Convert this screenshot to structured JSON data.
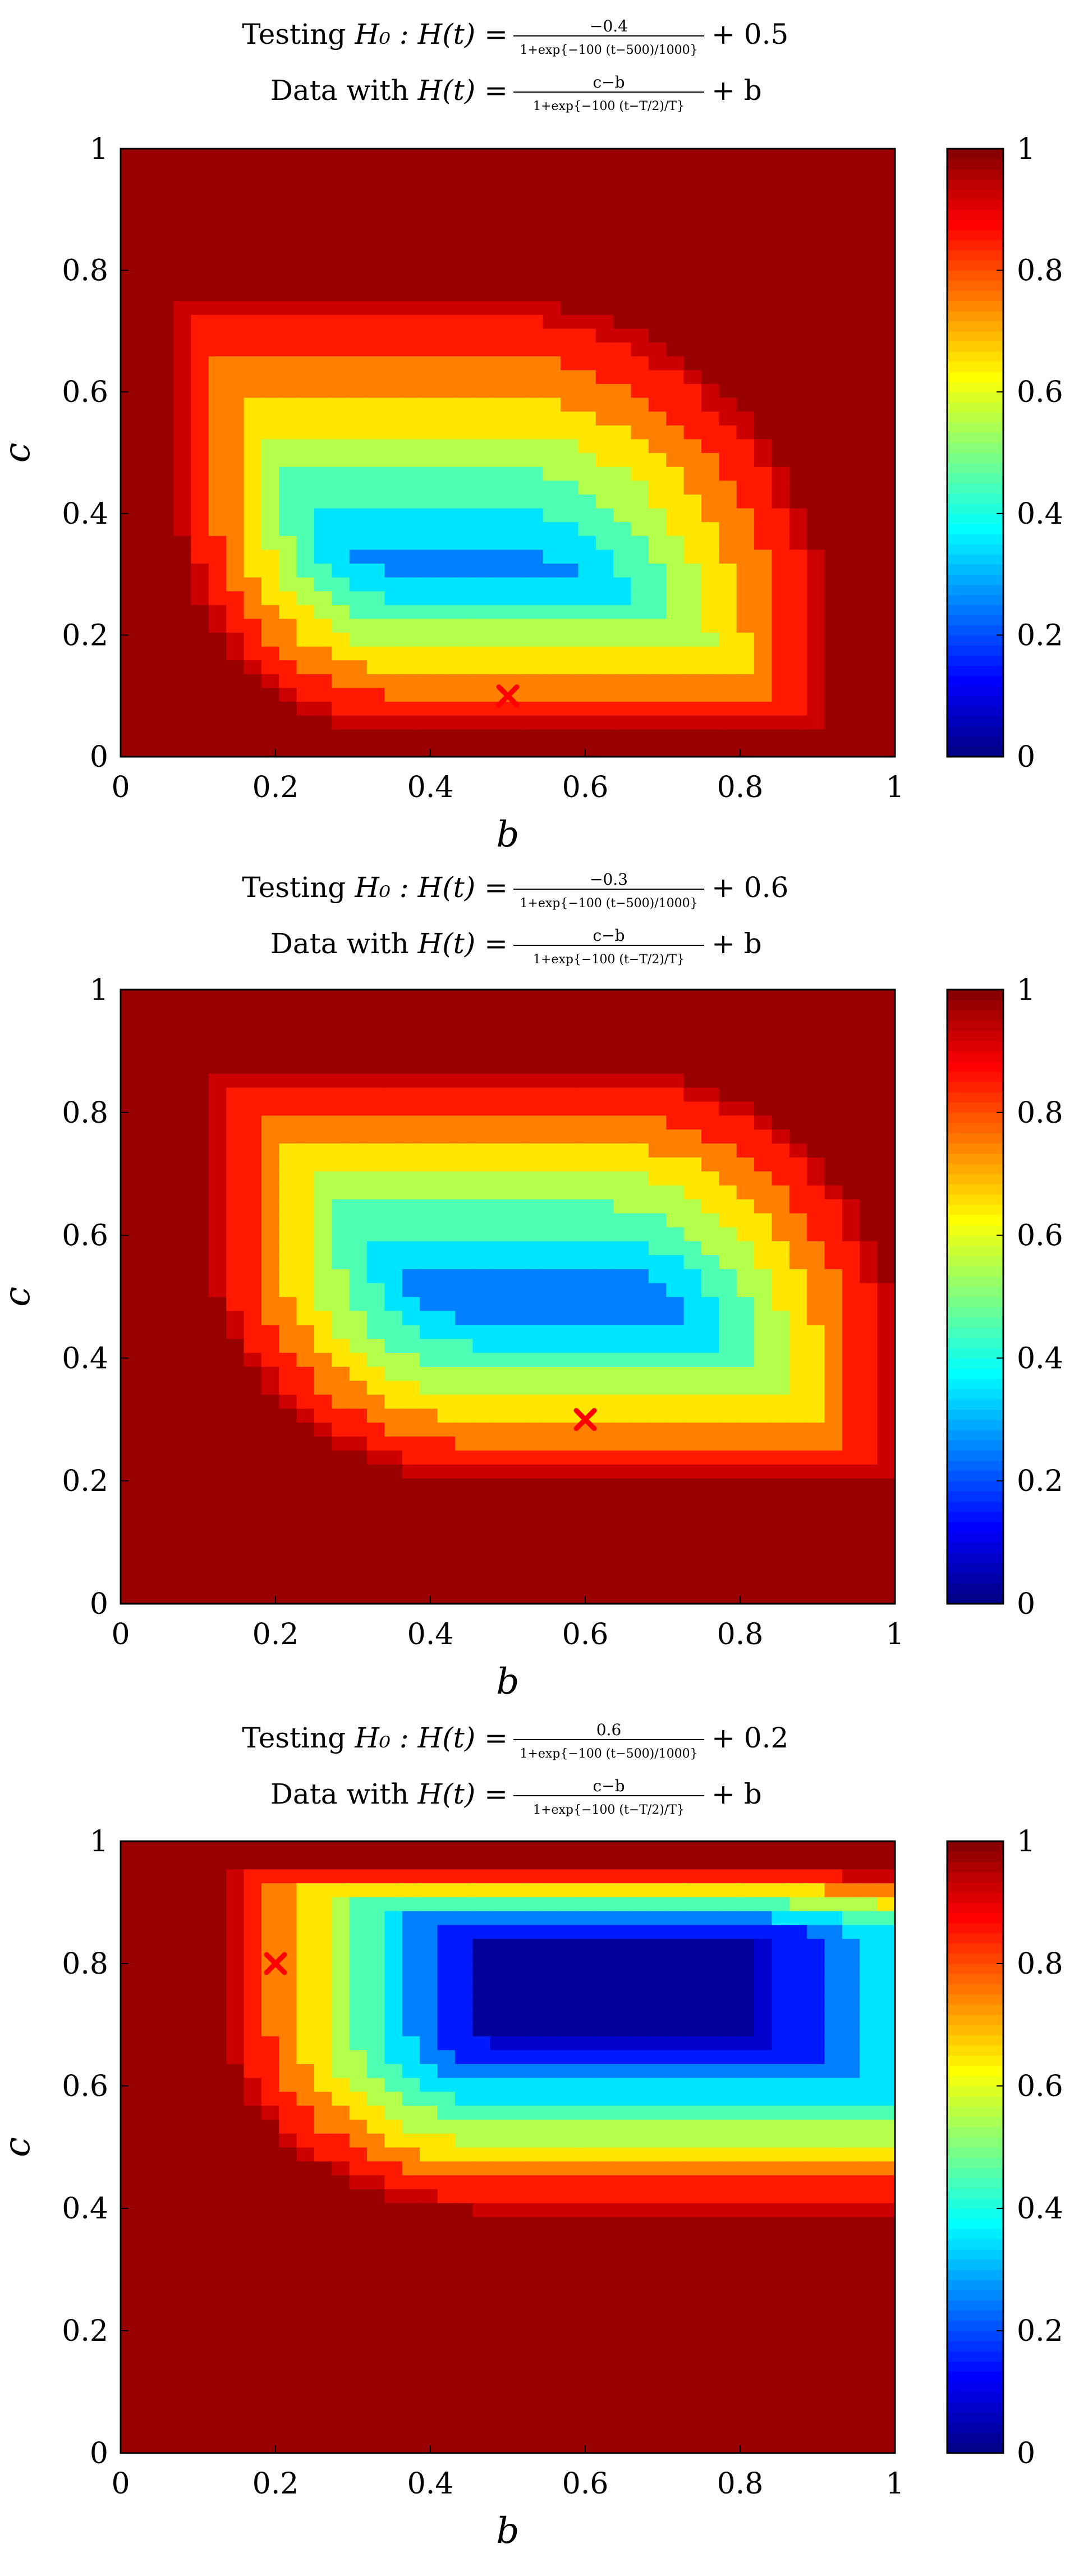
{
  "figure": {
    "colormap": "jet",
    "marker_color": "#ff0000",
    "contour_line_color": "#000000"
  },
  "chart_data": [
    {
      "type": "contour",
      "title_line1": {
        "prefix": "Testing",
        "lhs": "H₀ : H(t) =",
        "num": "−0.4",
        "den": "1+exp{−100 (t−500)/1000}",
        "suffix": "+ 0.5"
      },
      "title_line2": {
        "prefix": "Data with",
        "lhs": "H(t) =",
        "num": "c−b",
        "den": "1+exp{−100 (t−T/2)/T}",
        "suffix": "+ b"
      },
      "xlabel": "b",
      "ylabel": "c",
      "xlim": [
        0,
        1
      ],
      "ylim": [
        0,
        1
      ],
      "xticks": [
        "0",
        "0.2",
        "0.4",
        "0.6",
        "0.8",
        "1"
      ],
      "yticks": [
        "0",
        "0.2",
        "0.4",
        "0.6",
        "0.8",
        "1"
      ],
      "colorbar_ticks": [
        "0",
        "0.2",
        "0.4",
        "0.6",
        "0.8",
        "1"
      ],
      "marker": {
        "b": 0.5,
        "c": 0.1,
        "symbol": "x"
      },
      "levels": [
        0.05,
        0.1,
        0.2,
        0.3,
        0.4,
        0.5,
        0.6,
        0.7,
        0.8,
        0.9,
        0.95
      ]
    },
    {
      "type": "contour",
      "title_line1": {
        "prefix": "Testing",
        "lhs": "H₀ : H(t) =",
        "num": "−0.3",
        "den": "1+exp{−100 (t−500)/1000}",
        "suffix": "+ 0.6"
      },
      "title_line2": {
        "prefix": "Data with",
        "lhs": "H(t) =",
        "num": "c−b",
        "den": "1+exp{−100 (t−T/2)/T}",
        "suffix": "+ b"
      },
      "xlabel": "b",
      "ylabel": "c",
      "xlim": [
        0,
        1
      ],
      "ylim": [
        0,
        1
      ],
      "xticks": [
        "0",
        "0.2",
        "0.4",
        "0.6",
        "0.8",
        "1"
      ],
      "yticks": [
        "0",
        "0.2",
        "0.4",
        "0.6",
        "0.8",
        "1"
      ],
      "colorbar_ticks": [
        "0",
        "0.2",
        "0.4",
        "0.6",
        "0.8",
        "1"
      ],
      "marker": {
        "b": 0.6,
        "c": 0.3,
        "symbol": "x"
      },
      "levels": [
        0.05,
        0.1,
        0.2,
        0.3,
        0.4,
        0.5,
        0.6,
        0.7,
        0.8,
        0.9,
        0.95
      ]
    },
    {
      "type": "contour",
      "title_line1": {
        "prefix": "Testing",
        "lhs": "H₀ : H(t) =",
        "num": "0.6",
        "den": "1+exp{−100 (t−500)/1000}",
        "suffix": "+ 0.2"
      },
      "title_line2": {
        "prefix": "Data with",
        "lhs": "H(t) =",
        "num": "c−b",
        "den": "1+exp{−100 (t−T/2)/T}",
        "suffix": "+ b"
      },
      "xlabel": "b",
      "ylabel": "c",
      "xlim": [
        0,
        1
      ],
      "ylim": [
        0,
        1
      ],
      "xticks": [
        "0",
        "0.2",
        "0.4",
        "0.6",
        "0.8",
        "1"
      ],
      "yticks": [
        "0",
        "0.2",
        "0.4",
        "0.6",
        "0.8",
        "1"
      ],
      "colorbar_ticks": [
        "0",
        "0.2",
        "0.4",
        "0.6",
        "0.8",
        "1"
      ],
      "marker": {
        "b": 0.2,
        "c": 0.8,
        "symbol": "x"
      },
      "levels": [
        0.05,
        0.1,
        0.2,
        0.3,
        0.4,
        0.5,
        0.6,
        0.7,
        0.8,
        0.9,
        0.95
      ]
    }
  ]
}
